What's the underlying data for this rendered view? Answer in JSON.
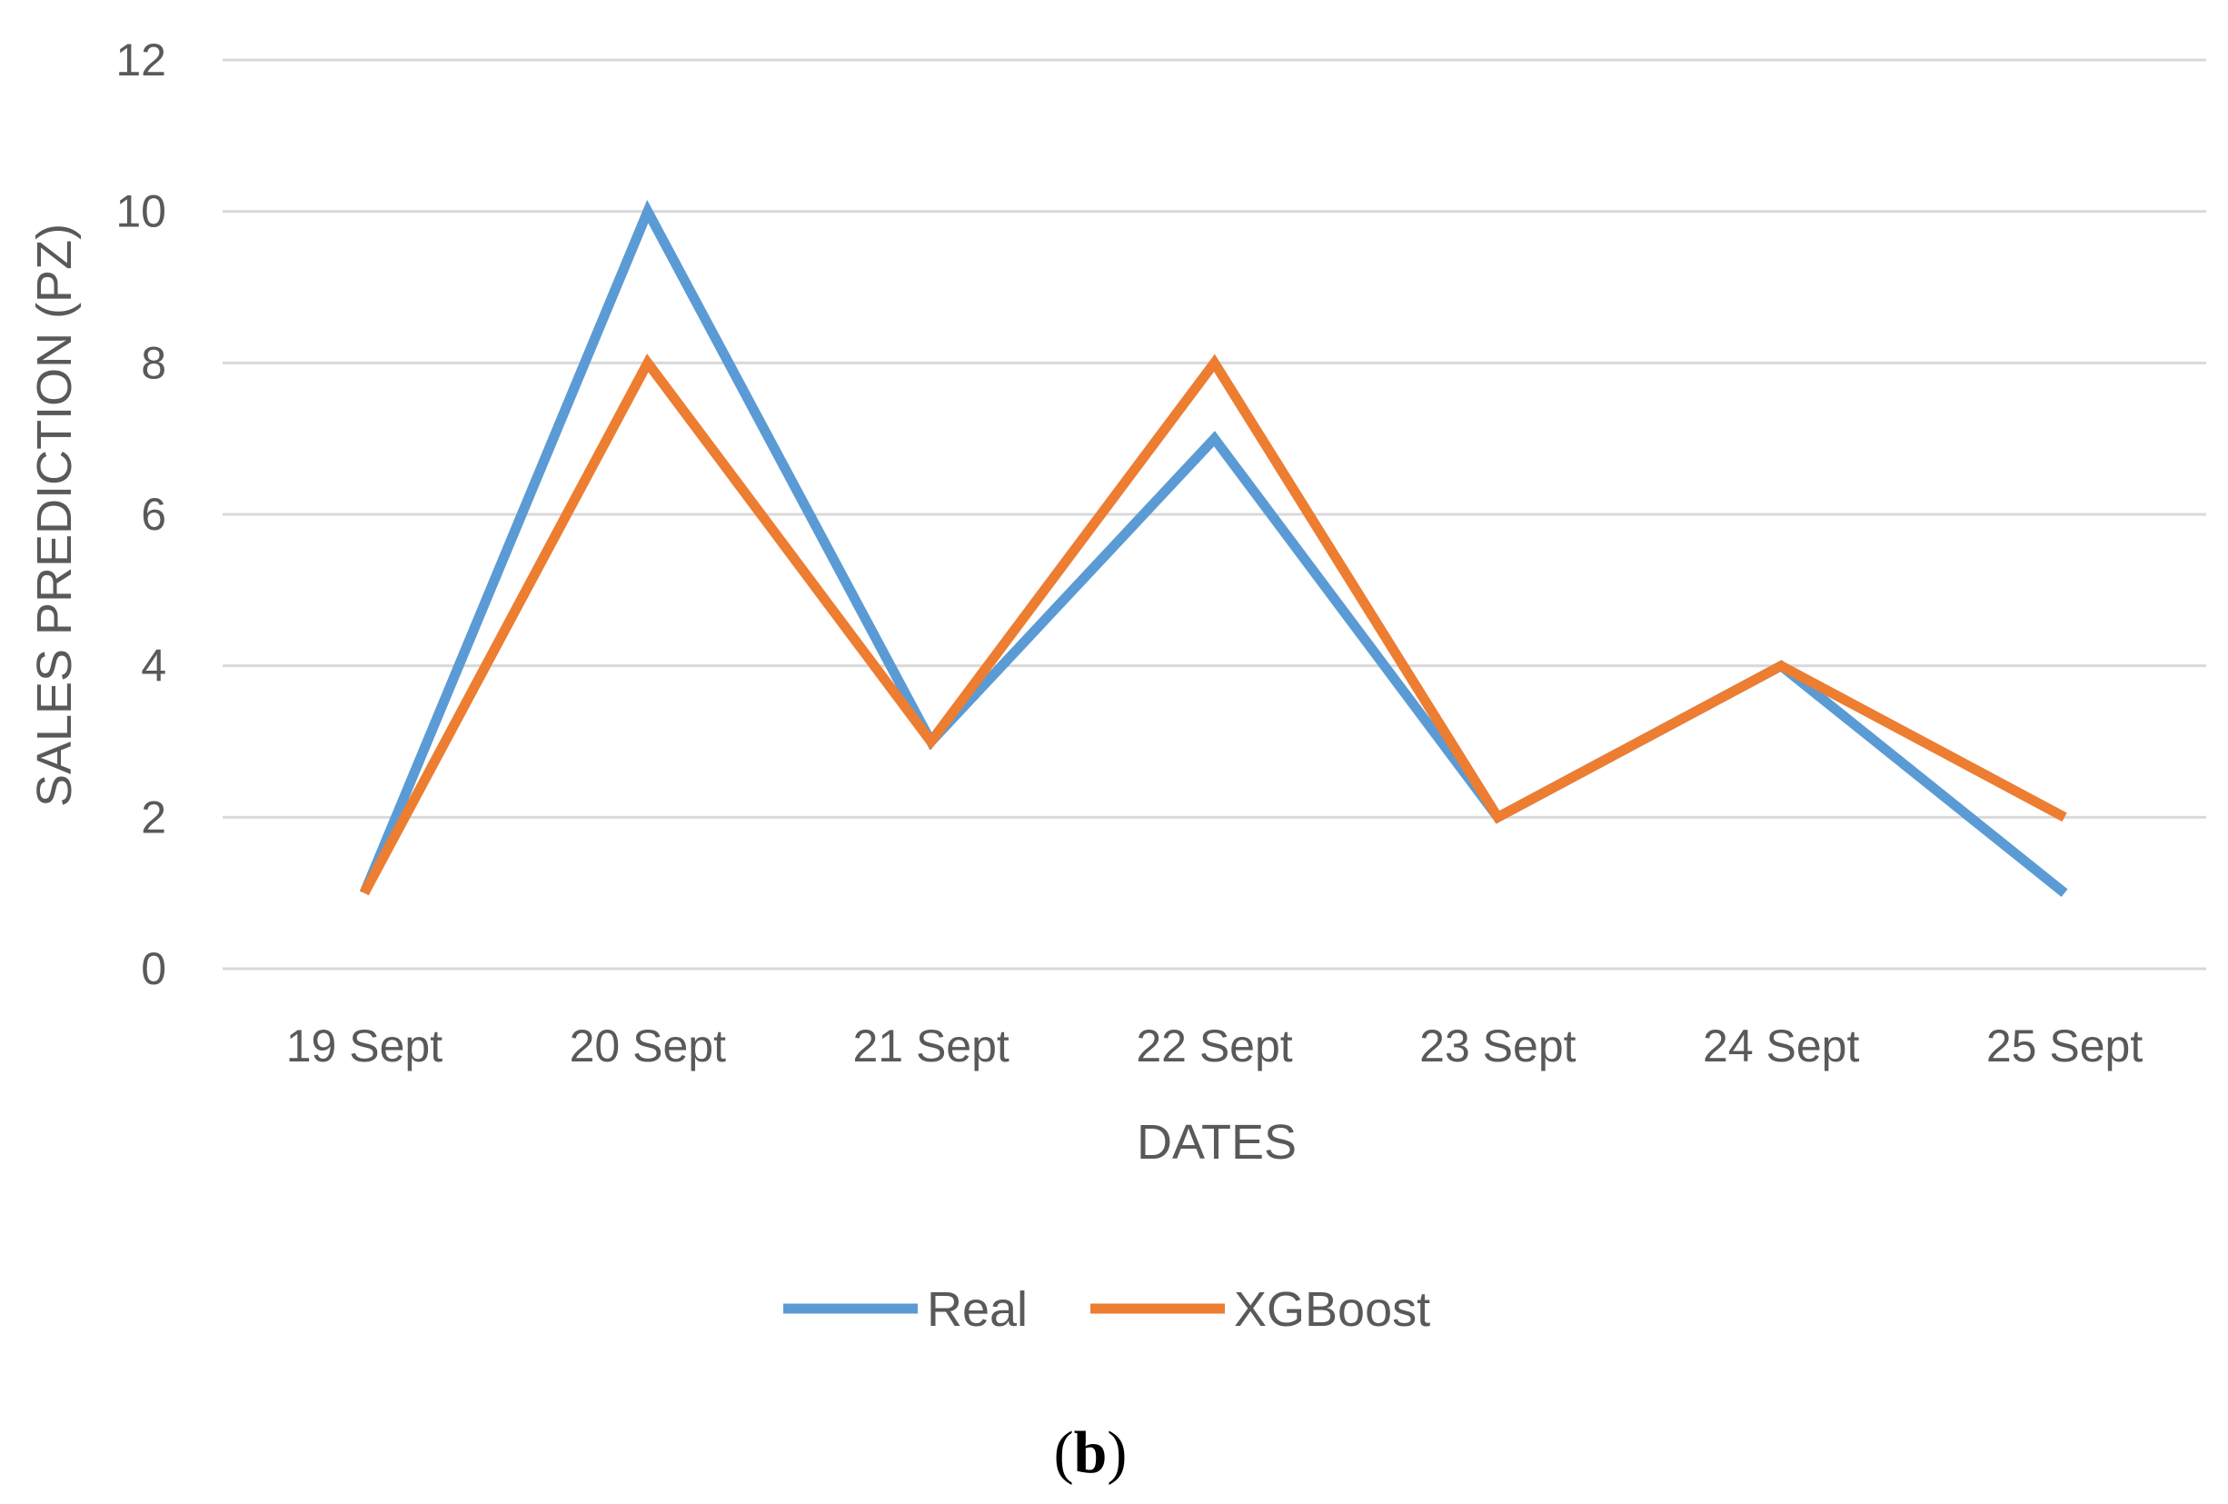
{
  "chart_data": {
    "type": "line",
    "categories": [
      "19 Sept",
      "20 Sept",
      "21 Sept",
      "22 Sept",
      "23 Sept",
      "24 Sept",
      "25 Sept"
    ],
    "series": [
      {
        "name": "Real",
        "color": "#5b9bd5",
        "values": [
          1,
          10,
          3,
          7,
          2,
          4,
          1
        ]
      },
      {
        "name": "XGBoost",
        "color": "#ed7d31",
        "values": [
          1,
          8,
          3,
          8,
          2,
          4,
          2
        ]
      }
    ],
    "xlabel": "DATES",
    "ylabel": "SALES PREDICTION (PZ)",
    "ylim": [
      0,
      12
    ],
    "yticks": [
      0,
      2,
      4,
      6,
      8,
      10,
      12
    ],
    "grid": true,
    "legend_position": "bottom"
  },
  "panel_label": {
    "open": "(",
    "letter": "b",
    "close": ")"
  }
}
